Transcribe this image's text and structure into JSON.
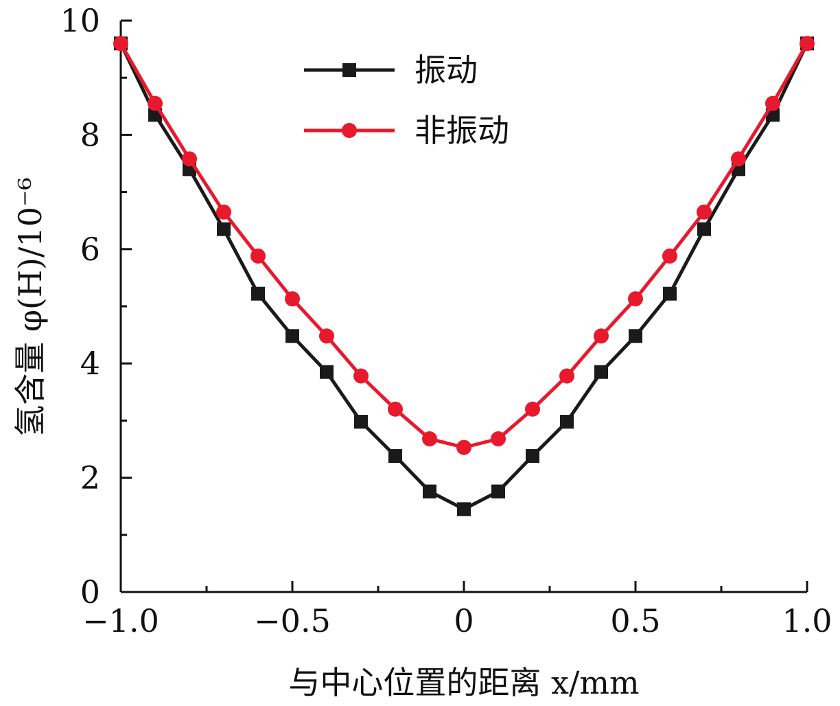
{
  "chart_data": {
    "type": "line",
    "xlabel": "与中心位置的距离 x/mm",
    "ylabel": "氢含量 φ(H)/10⁻⁶",
    "xlim": [
      -1.0,
      1.0
    ],
    "ylim": [
      0,
      10
    ],
    "x_ticks": [
      -1.0,
      -0.5,
      0,
      0.5,
      1.0
    ],
    "x_tick_labels": [
      "−1.0",
      "−0.5",
      "0",
      "0.5",
      "1.0"
    ],
    "y_ticks": [
      0,
      2,
      4,
      6,
      8,
      10
    ],
    "y_tick_labels": [
      "0",
      "2",
      "4",
      "6",
      "8",
      "10"
    ],
    "grid": false,
    "legend_position": "top-center",
    "series": [
      {
        "name": "振动",
        "color": "#1a1a1a",
        "marker": "square",
        "x": [
          -1.0,
          -0.9,
          -0.8,
          -0.7,
          -0.6,
          -0.5,
          -0.4,
          -0.3,
          -0.2,
          -0.1,
          0,
          0.1,
          0.2,
          0.3,
          0.4,
          0.5,
          0.6,
          0.7,
          0.8,
          0.9,
          1.0
        ],
        "y": [
          9.6,
          8.35,
          7.4,
          6.35,
          5.22,
          4.48,
          3.85,
          2.98,
          2.38,
          1.76,
          1.45,
          1.76,
          2.38,
          2.98,
          3.85,
          4.48,
          5.22,
          6.35,
          7.4,
          8.35,
          9.6
        ]
      },
      {
        "name": "非振动",
        "color": "#e8192c",
        "marker": "circle",
        "x": [
          -1.0,
          -0.9,
          -0.8,
          -0.7,
          -0.6,
          -0.5,
          -0.4,
          -0.3,
          -0.2,
          -0.1,
          0,
          0.1,
          0.2,
          0.3,
          0.4,
          0.5,
          0.6,
          0.7,
          0.8,
          0.9,
          1.0
        ],
        "y": [
          9.6,
          8.55,
          7.58,
          6.65,
          5.88,
          5.13,
          4.48,
          3.78,
          3.2,
          2.68,
          2.53,
          2.68,
          3.2,
          3.78,
          4.48,
          5.13,
          5.88,
          6.65,
          7.58,
          8.55,
          9.6
        ]
      }
    ]
  }
}
